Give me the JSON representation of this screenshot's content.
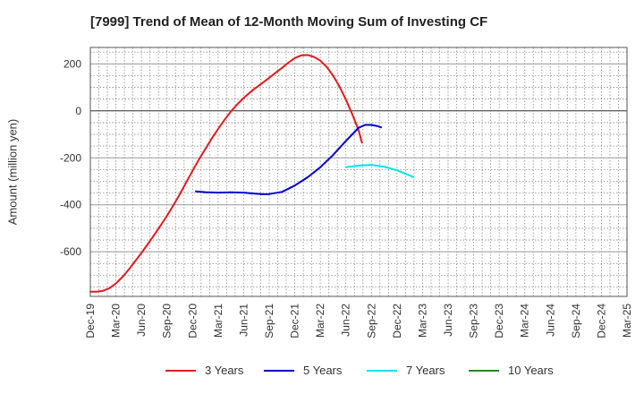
{
  "chart_data": {
    "type": "line",
    "title": "[7999]  Trend of Mean of 12-Month Moving Sum of Investing CF",
    "xlabel": "",
    "ylabel": "Amount (million yen)",
    "ylim": [
      -790,
      270
    ],
    "yticks": [
      200,
      0,
      -200,
      -400,
      -600
    ],
    "ytick_labels": [
      "200",
      "0",
      "-200",
      "-400",
      "-600"
    ],
    "categories": [
      "Dec-19",
      "Mar-20",
      "Jun-20",
      "Sep-20",
      "Dec-20",
      "Mar-21",
      "Jun-21",
      "Sep-21",
      "Dec-21",
      "Mar-22",
      "Jun-22",
      "Sep-22",
      "Dec-22",
      "Mar-23",
      "Jun-23",
      "Sep-23",
      "Dec-23",
      "Mar-24",
      "Jun-24",
      "Sep-24",
      "Dec-24",
      "Mar-25"
    ],
    "grid": true,
    "legend_position": "bottom",
    "series": [
      {
        "name": "3 Years",
        "color": "#e41a1c",
        "points": [
          [
            0,
            -770
          ],
          [
            0.25,
            -770
          ],
          [
            0.5,
            -766
          ],
          [
            0.75,
            -755
          ],
          [
            1,
            -735
          ],
          [
            1.25,
            -708
          ],
          [
            1.5,
            -676
          ],
          [
            1.75,
            -641
          ],
          [
            2,
            -605
          ],
          [
            2.25,
            -567
          ],
          [
            2.5,
            -528
          ],
          [
            2.75,
            -488
          ],
          [
            3,
            -447
          ],
          [
            3.25,
            -402
          ],
          [
            3.5,
            -355
          ],
          [
            3.75,
            -305
          ],
          [
            4,
            -255
          ],
          [
            4.25,
            -207
          ],
          [
            4.5,
            -162
          ],
          [
            4.75,
            -118
          ],
          [
            5,
            -77
          ],
          [
            5.25,
            -38
          ],
          [
            5.5,
            -3
          ],
          [
            5.75,
            28
          ],
          [
            6,
            55
          ],
          [
            6.25,
            79
          ],
          [
            6.5,
            100
          ],
          [
            6.75,
            120
          ],
          [
            7,
            141
          ],
          [
            7.25,
            162
          ],
          [
            7.5,
            183
          ],
          [
            7.75,
            205
          ],
          [
            8,
            225
          ],
          [
            8.25,
            236
          ],
          [
            8.5,
            238
          ],
          [
            8.75,
            230
          ],
          [
            9,
            214
          ],
          [
            9.25,
            187
          ],
          [
            9.5,
            150
          ],
          [
            9.75,
            103
          ],
          [
            10,
            48
          ],
          [
            10.25,
            -15
          ],
          [
            10.5,
            -83
          ],
          [
            10.625,
            -135
          ]
        ]
      },
      {
        "name": "5 Years",
        "color": "#0000cc",
        "points": [
          [
            4.125,
            -343
          ],
          [
            4.5,
            -346
          ],
          [
            5,
            -348
          ],
          [
            5.5,
            -347
          ],
          [
            6,
            -348
          ],
          [
            6.5,
            -353
          ],
          [
            6.75,
            -355
          ],
          [
            7,
            -354
          ],
          [
            7.5,
            -345
          ],
          [
            8,
            -318
          ],
          [
            8.5,
            -283
          ],
          [
            9,
            -240
          ],
          [
            9.5,
            -188
          ],
          [
            10,
            -128
          ],
          [
            10.25,
            -100
          ],
          [
            10.5,
            -72
          ],
          [
            10.75,
            -60
          ],
          [
            11,
            -60
          ],
          [
            11.25,
            -65
          ],
          [
            11.375,
            -70
          ]
        ]
      },
      {
        "name": "7 Years",
        "color": "#00e5ee",
        "points": [
          [
            10,
            -240
          ],
          [
            10.5,
            -233
          ],
          [
            11,
            -230
          ],
          [
            11.5,
            -238
          ],
          [
            12,
            -253
          ],
          [
            12.5,
            -275
          ],
          [
            12.625,
            -282
          ]
        ]
      },
      {
        "name": "10 Years",
        "color": "#228b22",
        "points": []
      }
    ]
  }
}
